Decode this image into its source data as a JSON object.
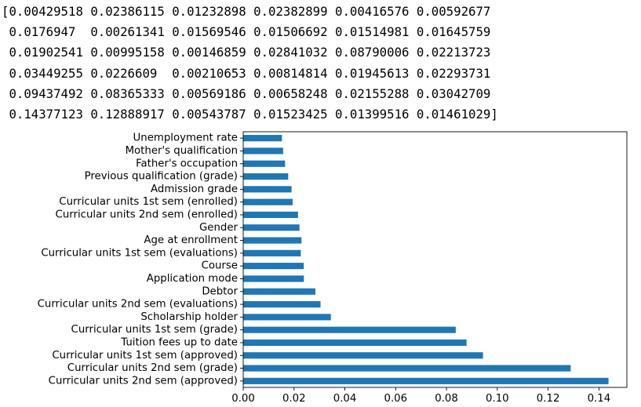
{
  "array_output": {
    "lines": [
      "[0.00429518 0.02386115 0.01232898 0.02382899 0.00416576 0.00592677",
      " 0.0176947  0.00261341 0.01569546 0.01506692 0.01514981 0.01645759",
      " 0.01902541 0.00995158 0.00146859 0.02841032 0.08790006 0.02213723",
      " 0.03449255 0.0226609  0.00210653 0.00814814 0.01945613 0.02293731",
      " 0.09437492 0.08365333 0.00569186 0.00658248 0.02155288 0.03042709",
      " 0.14377123 0.12888917 0.00543787 0.01523425 0.01399516 0.01461029]"
    ]
  },
  "chart_data": {
    "type": "bar",
    "orientation": "horizontal",
    "categories": [
      "Curricular units 2nd sem (approved)",
      "Curricular units 2nd sem (grade)",
      "Curricular units 1st sem (approved)",
      "Tuition fees up to date",
      "Curricular units 1st sem (grade)",
      "Scholarship holder",
      "Curricular units 2nd sem (evaluations)",
      "Debtor",
      "Application mode",
      "Course",
      "Curricular units 1st sem (evaluations)",
      "Age at enrollment",
      "Gender",
      "Curricular units 2nd sem (enrolled)",
      "Curricular units 1st sem (enrolled)",
      "Admission grade",
      "Previous qualification (grade)",
      "Father's occupation",
      "Mother's qualification",
      "Unemployment rate"
    ],
    "values": [
      0.14377123,
      0.12888917,
      0.09437492,
      0.08790006,
      0.08365333,
      0.03449255,
      0.03042709,
      0.02841032,
      0.02386115,
      0.02382899,
      0.0226609,
      0.02293731,
      0.02213723,
      0.02155288,
      0.01945613,
      0.01902541,
      0.0176947,
      0.01645759,
      0.01569546,
      0.01523425
    ],
    "xticks": [
      "0.00",
      "0.02",
      "0.04",
      "0.06",
      "0.08",
      "0.10",
      "0.12",
      "0.14"
    ],
    "xlim": [
      0,
      0.151
    ],
    "title": "",
    "xlabel": "",
    "ylabel": "",
    "grid": false,
    "bar_color": "#1f77b4"
  }
}
